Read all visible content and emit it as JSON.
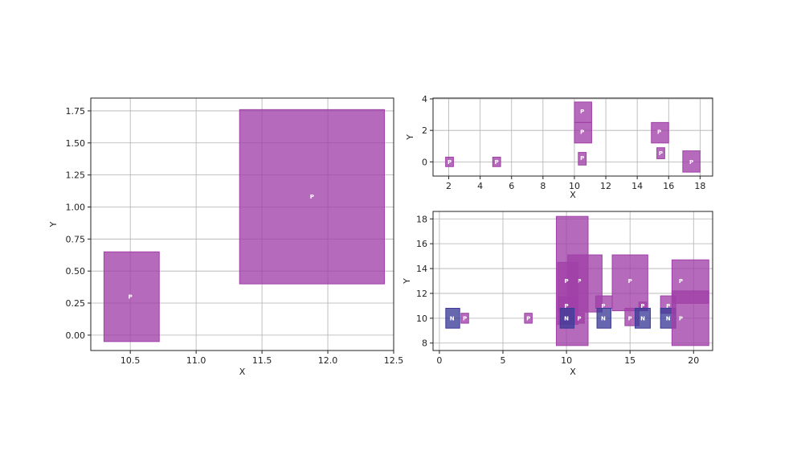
{
  "colors": {
    "P": "#a040a8",
    "N": "#3c3c98"
  },
  "chart_data": [
    {
      "type": "box",
      "xlabel": "X",
      "ylabel": "Y",
      "xlim": [
        10.2,
        12.5
      ],
      "ylim": [
        -0.12,
        1.85
      ],
      "xticks": [
        "10.5",
        "11.0",
        "11.5",
        "12.0",
        "12.5"
      ],
      "yticks": [
        "0.00",
        "0.25",
        "0.50",
        "0.75",
        "1.00",
        "1.25",
        "1.50",
        "1.75"
      ],
      "boxes": [
        {
          "label": "P",
          "x0": 10.3,
          "x1": 10.72,
          "y0": -0.05,
          "y1": 0.65,
          "lx": 10.5,
          "ly": 0.3
        },
        {
          "label": "P",
          "x0": 11.33,
          "x1": 12.43,
          "y0": 0.4,
          "y1": 1.76,
          "lx": 11.88,
          "ly": 1.08
        }
      ]
    },
    {
      "type": "box",
      "xlabel": "X",
      "ylabel": "Y",
      "xlim": [
        1,
        18.8
      ],
      "ylim": [
        -0.9,
        4.05
      ],
      "xticks": [
        "2",
        "4",
        "6",
        "8",
        "10",
        "12",
        "14",
        "16",
        "18"
      ],
      "yticks": [
        "0",
        "2",
        "4"
      ],
      "boxes": [
        {
          "label": "P",
          "x0": 1.8,
          "x1": 2.3,
          "y0": -0.3,
          "y1": 0.3,
          "lx": 2.05,
          "ly": 0
        },
        {
          "label": "P",
          "x0": 4.8,
          "x1": 5.3,
          "y0": -0.3,
          "y1": 0.3,
          "lx": 5.05,
          "ly": 0
        },
        {
          "label": "P",
          "x0": 10,
          "x1": 11.1,
          "y0": 2.5,
          "y1": 3.8,
          "lx": 10.5,
          "ly": 3.2
        },
        {
          "label": "P",
          "x0": 10,
          "x1": 11.1,
          "y0": 1.2,
          "y1": 2.5,
          "lx": 10.5,
          "ly": 1.9
        },
        {
          "label": "P",
          "x0": 10.25,
          "x1": 10.75,
          "y0": -0.2,
          "y1": 0.6,
          "lx": 10.5,
          "ly": 0.25
        },
        {
          "label": "P",
          "x0": 14.9,
          "x1": 16,
          "y0": 1.2,
          "y1": 2.5,
          "lx": 15.4,
          "ly": 1.9
        },
        {
          "label": "P",
          "x0": 15.25,
          "x1": 15.75,
          "y0": 0.2,
          "y1": 0.9,
          "lx": 15.5,
          "ly": 0.55
        },
        {
          "label": "P",
          "x0": 16.9,
          "x1": 18,
          "y0": -0.65,
          "y1": 0.7,
          "lx": 17.45,
          "ly": 0
        }
      ]
    },
    {
      "type": "box",
      "xlabel": "X",
      "ylabel": "Y",
      "xlim": [
        -0.5,
        21.5
      ],
      "ylim": [
        7.4,
        18.6
      ],
      "xticks": [
        "0",
        "5",
        "10",
        "15",
        "20"
      ],
      "yticks": [
        "8",
        "10",
        "12",
        "14",
        "16",
        "18"
      ],
      "boxes": [
        {
          "label": "",
          "x0": 9.2,
          "x1": 11.7,
          "y0": 7.8,
          "y1": 18.2,
          "lx": 10.4,
          "ly": 13
        },
        {
          "label": "P",
          "x0": 10.1,
          "x1": 12.8,
          "y0": 10.5,
          "y1": 15.1,
          "lx": 11,
          "ly": 13
        },
        {
          "label": "P",
          "x0": 9.3,
          "x1": 10.9,
          "y0": 10.5,
          "y1": 14.5,
          "lx": 10,
          "ly": 13
        },
        {
          "label": "P",
          "x0": 9.3,
          "x1": 10.9,
          "y0": 9.5,
          "y1": 11.7,
          "lx": 10,
          "ly": 11
        },
        {
          "label": "P",
          "x0": 9.7,
          "x1": 10.4,
          "y0": 9.6,
          "y1": 10.4,
          "lx": 10,
          "ly": 10
        },
        {
          "label": "P",
          "x0": 10.6,
          "x1": 11.4,
          "y0": 9.6,
          "y1": 10.4,
          "lx": 11,
          "ly": 10
        },
        {
          "label": "N",
          "x0": 9.5,
          "x1": 10.6,
          "y0": 9.2,
          "y1": 10.8,
          "lx": 10,
          "ly": 10
        },
        {
          "label": "N",
          "x0": 0.5,
          "x1": 1.6,
          "y0": 9.2,
          "y1": 10.8,
          "lx": 1,
          "ly": 10
        },
        {
          "label": "P",
          "x0": 1.7,
          "x1": 2.3,
          "y0": 9.6,
          "y1": 10.4,
          "lx": 2,
          "ly": 10
        },
        {
          "label": "P",
          "x0": 6.7,
          "x1": 7.3,
          "y0": 9.6,
          "y1": 10.4,
          "lx": 7,
          "ly": 10
        },
        {
          "label": "P",
          "x0": 12.3,
          "x1": 13.6,
          "y0": 10.8,
          "y1": 11.8,
          "lx": 12.9,
          "ly": 11
        },
        {
          "label": "N",
          "x0": 12.4,
          "x1": 13.5,
          "y0": 9.2,
          "y1": 10.8,
          "lx": 12.9,
          "ly": 10
        },
        {
          "label": "P",
          "x0": 13.6,
          "x1": 16.4,
          "y0": 10.6,
          "y1": 15.1,
          "lx": 15,
          "ly": 13
        },
        {
          "label": "P",
          "x0": 14.6,
          "x1": 15.7,
          "y0": 9.4,
          "y1": 10.8,
          "lx": 15,
          "ly": 10
        },
        {
          "label": "P",
          "x0": 15.7,
          "x1": 16.3,
          "y0": 10.7,
          "y1": 11.3,
          "lx": 16,
          "ly": 11
        },
        {
          "label": "N",
          "x0": 15.4,
          "x1": 16.6,
          "y0": 9.2,
          "y1": 10.8,
          "lx": 16,
          "ly": 10
        },
        {
          "label": "P",
          "x0": 17.4,
          "x1": 18.6,
          "y0": 10.4,
          "y1": 11.8,
          "lx": 18,
          "ly": 11
        },
        {
          "label": "N",
          "x0": 17.4,
          "x1": 18.6,
          "y0": 9.2,
          "y1": 10.8,
          "lx": 18,
          "ly": 10
        },
        {
          "label": "P",
          "x0": 18.3,
          "x1": 21.2,
          "y0": 7.8,
          "y1": 12.2,
          "lx": 19,
          "ly": 10
        },
        {
          "label": "P",
          "x0": 18.3,
          "x1": 21.2,
          "y0": 11.2,
          "y1": 14.7,
          "lx": 19,
          "ly": 13
        }
      ]
    }
  ]
}
